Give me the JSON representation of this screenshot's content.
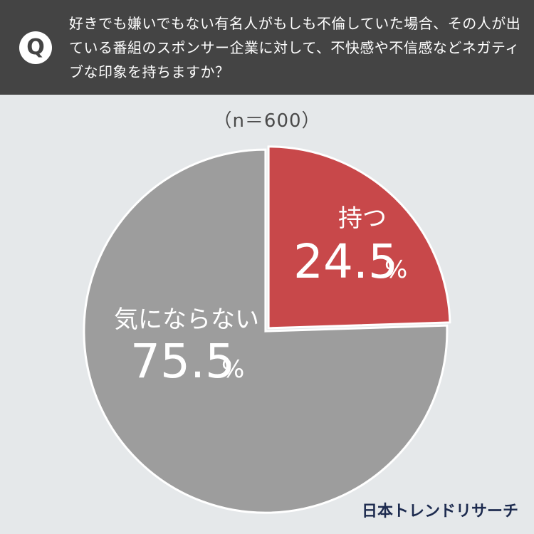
{
  "header": {
    "badge": "Q",
    "question": "好きでも嫌いでもない有名人がもしも不倫していた場合、その人が出ている番組のスポンサー企業に対して、不快感や不信感などネガティブな印象を持ちますか？"
  },
  "sample_size": "（n＝600）",
  "brand": "日本トレンドリサーチ",
  "colors": {
    "header_bg": "#444444",
    "page_bg": "#e5e8ea",
    "slice_positive": "#c8484a",
    "slice_negative": "#9d9d9d"
  },
  "chart_data": {
    "type": "pie",
    "n": 600,
    "slices": [
      {
        "label": "持つ",
        "value": 24.5,
        "value_text": "24.5",
        "unit": "%",
        "color": "#c8484a"
      },
      {
        "label": "気にならない",
        "value": 75.5,
        "value_text": "75.5",
        "unit": "%",
        "color": "#9d9d9d"
      }
    ]
  }
}
